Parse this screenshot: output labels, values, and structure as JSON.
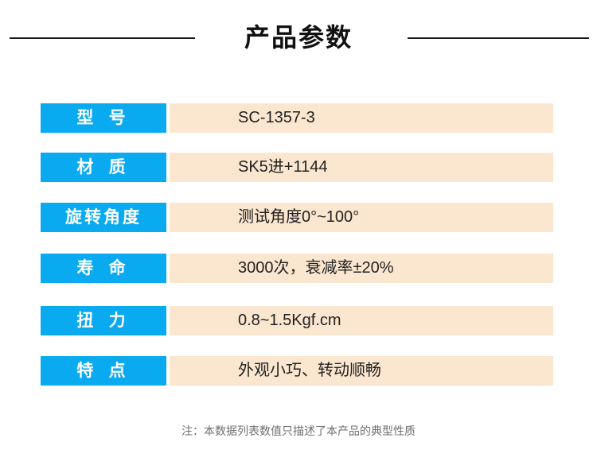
{
  "header": {
    "title": "产品参数"
  },
  "params": [
    {
      "label": "型 号",
      "value": "SC-1357-3"
    },
    {
      "label": "材 质",
      "value": "SK5进+1144"
    },
    {
      "label": "旋转角度",
      "value": "测试角度0°~100°"
    },
    {
      "label": "寿 命",
      "value": "3000次，衰减率±20%"
    },
    {
      "label": "扭 力",
      "value": "0.8~1.5Kgf.cm"
    },
    {
      "label": "特 点",
      "value": "外观小巧、转动顺畅"
    }
  ],
  "footnote": "注：本数据列表数值只描述了本产品的典型性质",
  "colors": {
    "label_bg": "#0aaaf0",
    "value_bg": "#fbe6cf"
  }
}
